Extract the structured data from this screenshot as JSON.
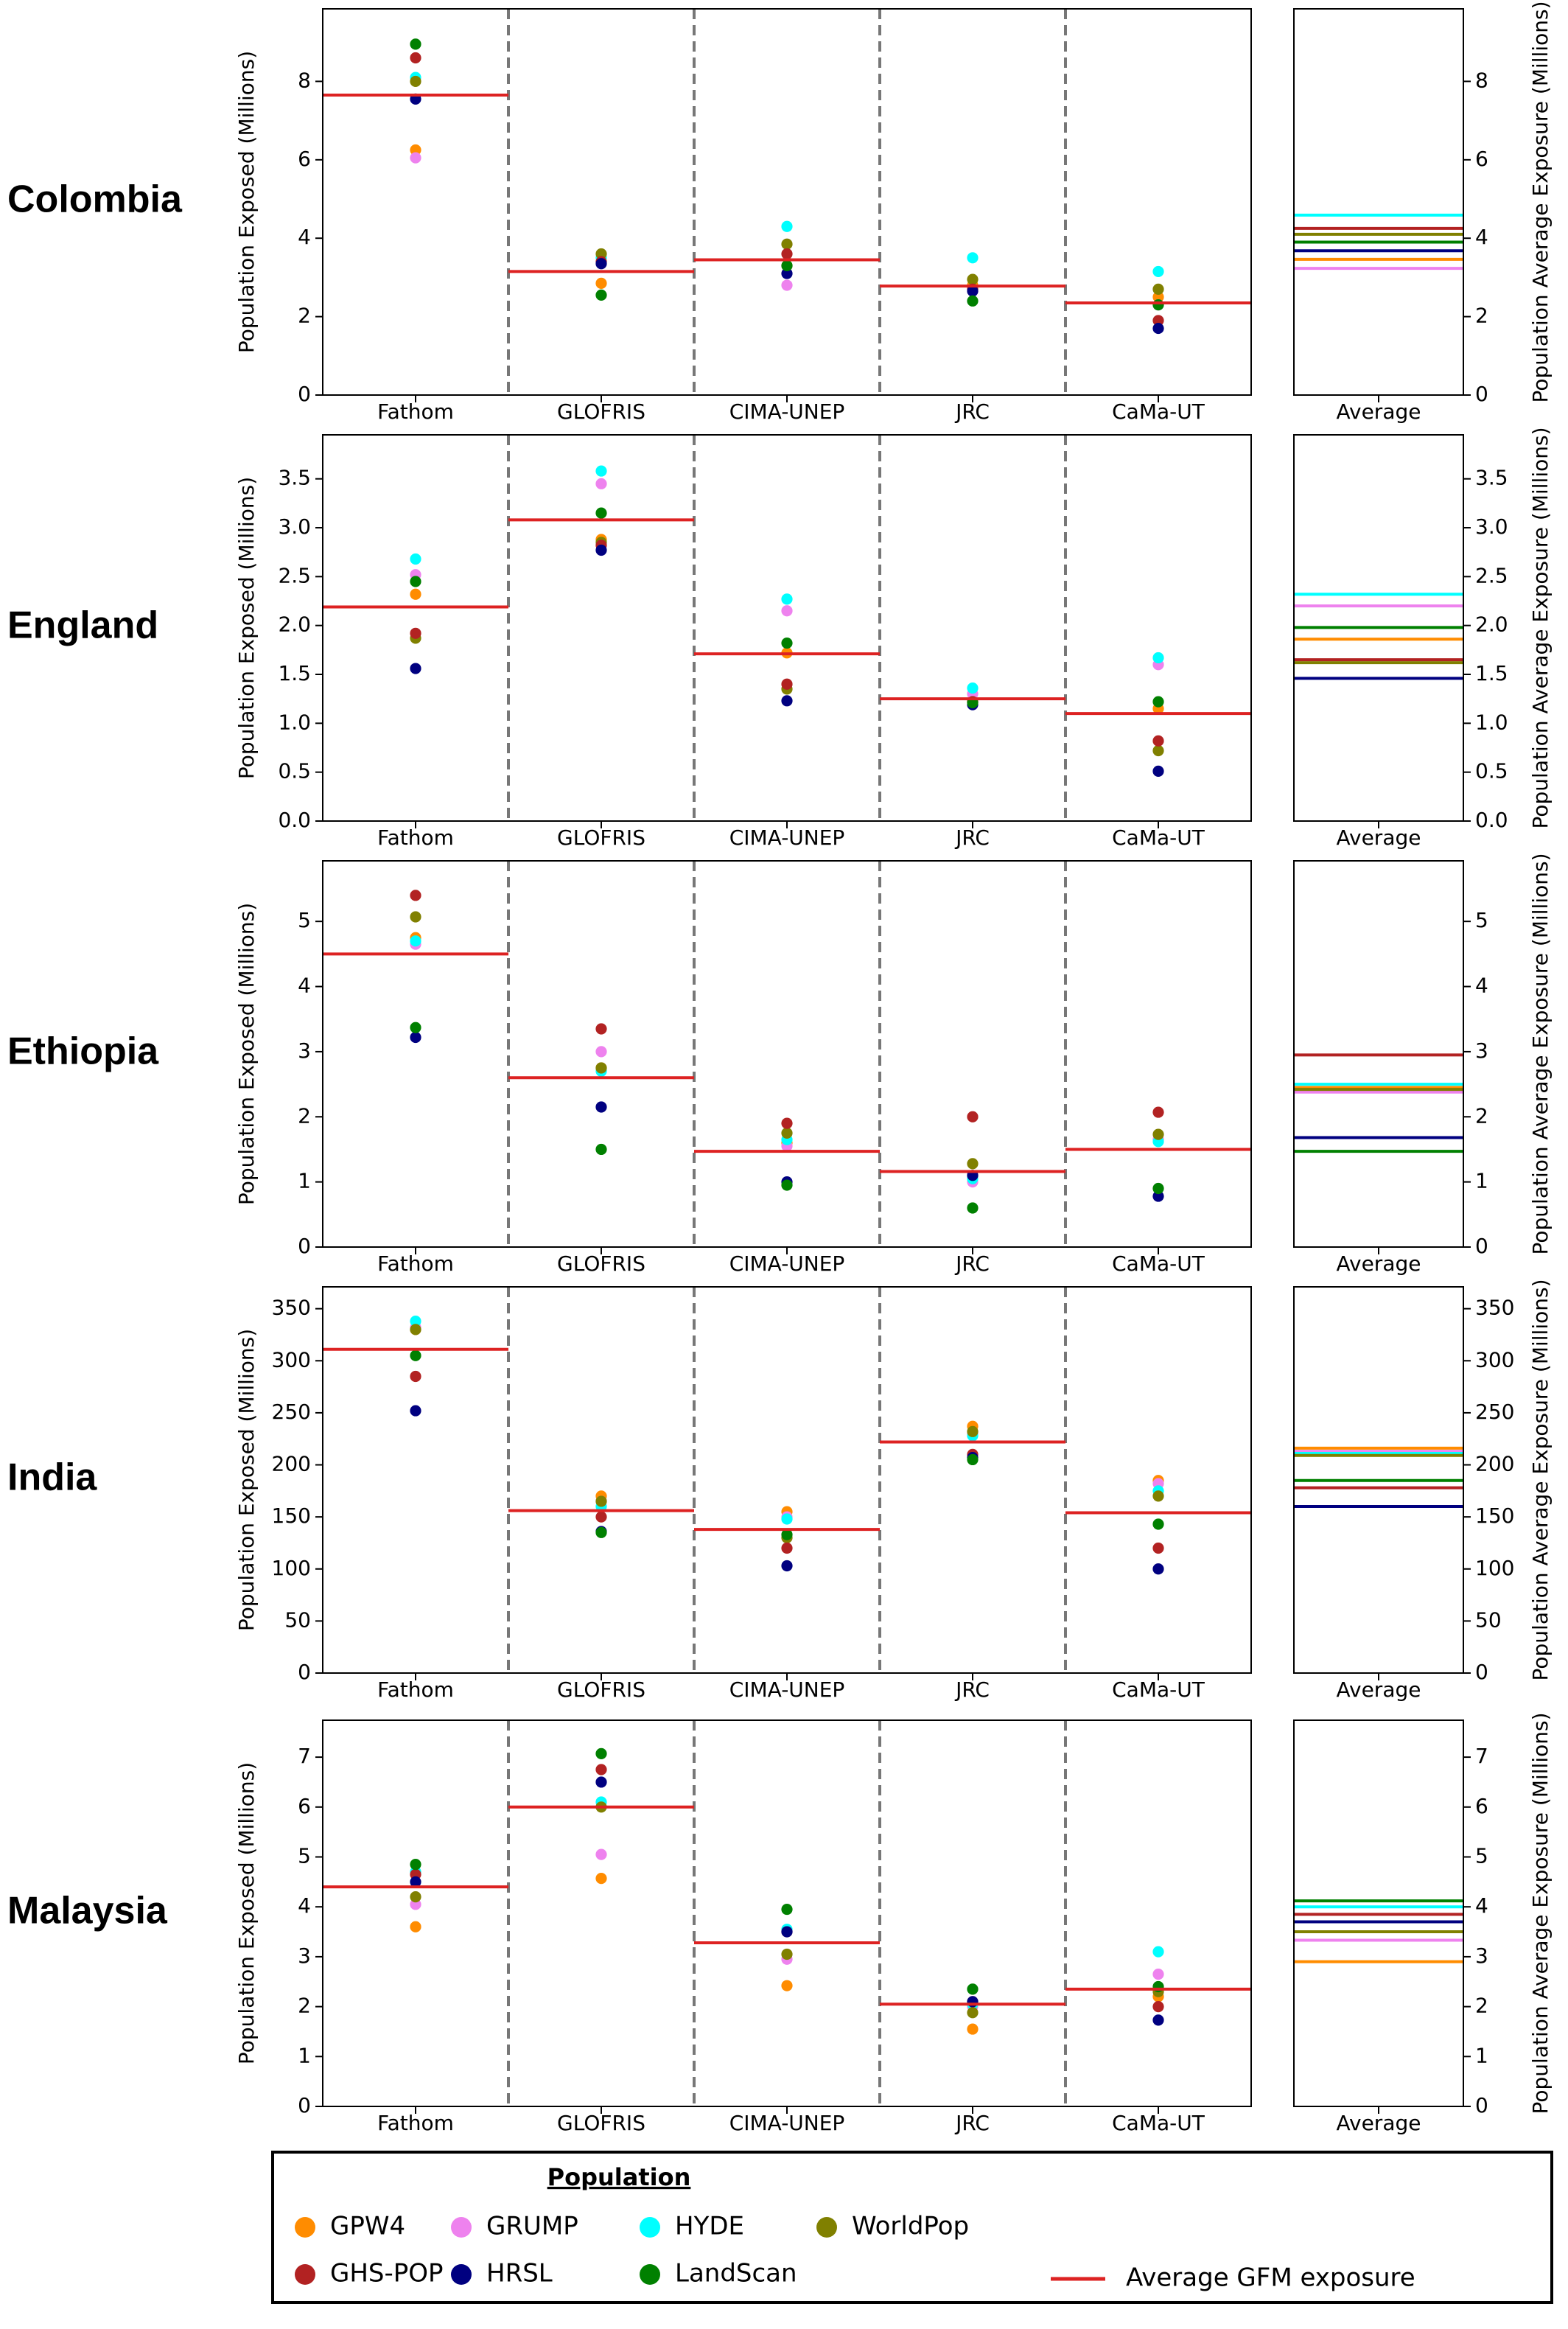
{
  "chart_data": [
    {
      "type": "strip",
      "title": "Colombia",
      "ylabel": "Population Exposed (Millions)",
      "y2label": "Population Average Exposure (Millions)",
      "categories": [
        "Fathom",
        "GLOFRIS",
        "CIMA-UNEP",
        "JRC",
        "CaMa-UT"
      ],
      "average_category": "Average",
      "ylim": [
        0,
        9.85
      ],
      "yticks": [
        0,
        2,
        4,
        6,
        8
      ],
      "series": [
        {
          "values": [
            6.25,
            2.85,
            3.3,
            2.8,
            2.5
          ],
          "average": 3.46
        },
        {
          "values": [
            6.05,
            3.4,
            2.8,
            2.7,
            2.3
          ],
          "average": 3.23
        },
        {
          "values": [
            8.1,
            3.5,
            4.3,
            3.5,
            3.15
          ],
          "average": 4.59
        },
        {
          "values": [
            8.0,
            3.6,
            3.85,
            2.95,
            2.7
          ],
          "average": 4.1
        },
        {
          "values": [
            8.6,
            3.4,
            3.6,
            2.7,
            1.9
          ],
          "average": 4.25
        },
        {
          "values": [
            7.55,
            3.35,
            3.1,
            2.65,
            1.7
          ],
          "average": 3.68
        },
        {
          "values": [
            8.95,
            2.55,
            3.3,
            2.4,
            2.3
          ],
          "average": 3.9
        }
      ],
      "gfm_average": [
        7.65,
        3.15,
        3.45,
        2.78,
        2.35
      ]
    },
    {
      "type": "strip",
      "title": "England",
      "ylabel": "Population Exposed (Millions)",
      "y2label": "Population Average Exposure (Millions)",
      "categories": [
        "Fathom",
        "GLOFRIS",
        "CIMA-UNEP",
        "JRC",
        "CaMa-UT"
      ],
      "average_category": "Average",
      "ylim": [
        0,
        3.95
      ],
      "yticks": [
        {
          "value": 0,
          "label": "0.0"
        },
        0.5,
        {
          "value": 1,
          "label": "1.0"
        },
        1.5,
        {
          "value": 2,
          "label": "2.0"
        },
        2.5,
        {
          "value": 3,
          "label": "3.0"
        },
        3.5
      ],
      "series": [
        {
          "values": [
            2.32,
            2.88,
            1.72,
            1.22,
            1.15
          ],
          "average": 1.86
        },
        {
          "values": [
            2.52,
            3.45,
            2.15,
            1.3,
            1.6
          ],
          "average": 2.2
        },
        {
          "values": [
            2.68,
            3.58,
            2.27,
            1.36,
            1.67
          ],
          "average": 2.32
        },
        {
          "values": [
            1.87,
            2.85,
            1.35,
            1.22,
            0.72
          ],
          "average": 1.62
        },
        {
          "values": [
            1.92,
            2.82,
            1.4,
            1.22,
            0.82
          ],
          "average": 1.65
        },
        {
          "values": [
            1.56,
            2.77,
            1.23,
            1.19,
            0.51
          ],
          "average": 1.46
        },
        {
          "values": [
            2.45,
            3.15,
            1.82,
            1.21,
            1.22
          ],
          "average": 1.98
        }
      ],
      "gfm_average": [
        2.19,
        3.08,
        1.71,
        1.25,
        1.1
      ]
    },
    {
      "type": "strip",
      "title": "Ethiopia",
      "ylabel": "Population Exposed (Millions)",
      "y2label": "Population Average Exposure (Millions)",
      "categories": [
        "Fathom",
        "GLOFRIS",
        "CIMA-UNEP",
        "JRC",
        "CaMa-UT"
      ],
      "average_category": "Average",
      "ylim": [
        0,
        5.93
      ],
      "yticks": [
        0,
        1,
        2,
        3,
        4,
        5
      ],
      "series": [
        {
          "values": [
            4.75,
            2.75,
            1.6,
            1.1,
            1.65
          ],
          "average": 2.45
        },
        {
          "values": [
            4.65,
            3.0,
            1.55,
            1.0,
            1.65
          ],
          "average": 2.38
        },
        {
          "values": [
            4.7,
            2.7,
            1.65,
            1.05,
            1.62
          ],
          "average": 2.5
        },
        {
          "values": [
            5.07,
            2.75,
            1.75,
            1.28,
            1.73
          ],
          "average": 2.42
        },
        {
          "values": [
            5.4,
            3.35,
            1.9,
            2.0,
            2.07
          ],
          "average": 2.95
        },
        {
          "values": [
            3.22,
            2.15,
            1.0,
            1.1,
            0.78
          ],
          "average": 1.68
        },
        {
          "values": [
            3.37,
            1.5,
            0.95,
            0.6,
            0.9
          ],
          "average": 1.47
        }
      ],
      "gfm_average": [
        4.5,
        2.6,
        1.47,
        1.16,
        1.5
      ]
    },
    {
      "type": "strip",
      "title": "India",
      "ylabel": "Population Exposed (Millions)",
      "y2label": "Population Average Exposure (Millions)",
      "categories": [
        "Fathom",
        "GLOFRIS",
        "CIMA-UNEP",
        "JRC",
        "CaMa-UT"
      ],
      "average_category": "Average",
      "ylim": [
        0,
        371
      ],
      "yticks": [
        0,
        50,
        100,
        150,
        200,
        250,
        300,
        350
      ],
      "series": [
        {
          "values": [
            330,
            170,
            155,
            237,
            185
          ],
          "average": 216
        },
        {
          "values": [
            332,
            165,
            150,
            230,
            182
          ],
          "average": 213
        },
        {
          "values": [
            338,
            160,
            148,
            228,
            175
          ],
          "average": 211
        },
        {
          "values": [
            330,
            165,
            130,
            232,
            170
          ],
          "average": 209
        },
        {
          "values": [
            285,
            150,
            120,
            210,
            120
          ],
          "average": 178
        },
        {
          "values": [
            252,
            136,
            103,
            207,
            100
          ],
          "average": 160
        },
        {
          "values": [
            305,
            135,
            133,
            205,
            143
          ],
          "average": 185
        }
      ],
      "gfm_average": [
        311,
        156,
        138,
        222,
        154
      ]
    },
    {
      "type": "strip",
      "title": "Malaysia",
      "ylabel": "Population Exposed (Millions)",
      "y2label": "Population Average Exposure (Millions)",
      "categories": [
        "Fathom",
        "GLOFRIS",
        "CIMA-UNEP",
        "JRC",
        "CaMa-UT"
      ],
      "average_category": "Average",
      "ylim": [
        0,
        7.74
      ],
      "yticks": [
        0,
        1,
        2,
        3,
        4,
        5,
        6,
        7
      ],
      "series": [
        {
          "values": [
            3.6,
            4.57,
            2.42,
            1.55,
            2.2
          ],
          "average": 2.9
        },
        {
          "values": [
            4.05,
            5.05,
            2.95,
            2.0,
            2.65
          ],
          "average": 3.33
        },
        {
          "values": [
            4.7,
            6.1,
            3.55,
            2.05,
            3.1
          ],
          "average": 4.0
        },
        {
          "values": [
            4.2,
            6.0,
            3.05,
            1.88,
            2.3
          ],
          "average": 3.5
        },
        {
          "values": [
            4.65,
            6.75,
            3.5,
            2.1,
            2.0
          ],
          "average": 3.85
        },
        {
          "values": [
            4.5,
            6.5,
            3.5,
            2.1,
            1.73
          ],
          "average": 3.7
        },
        {
          "values": [
            4.85,
            7.07,
            3.95,
            2.35,
            2.4
          ],
          "average": 4.12
        }
      ],
      "gfm_average": [
        4.4,
        6.0,
        3.28,
        2.05,
        2.35
      ]
    }
  ],
  "legend": {
    "title": "Population",
    "series": [
      {
        "name": "GPW4",
        "color": "#ff8c00"
      },
      {
        "name": "GRUMP",
        "color": "#ee82ee"
      },
      {
        "name": "HYDE",
        "color": "#00ffff"
      },
      {
        "name": "WorldPop",
        "color": "#808000"
      },
      {
        "name": "GHS-POP",
        "color": "#b22222"
      },
      {
        "name": "HRSL",
        "color": "#000080"
      },
      {
        "name": "LandScan",
        "color": "#008000"
      }
    ],
    "line_label": "Average GFM exposure",
    "line_color": "#dd2222"
  }
}
